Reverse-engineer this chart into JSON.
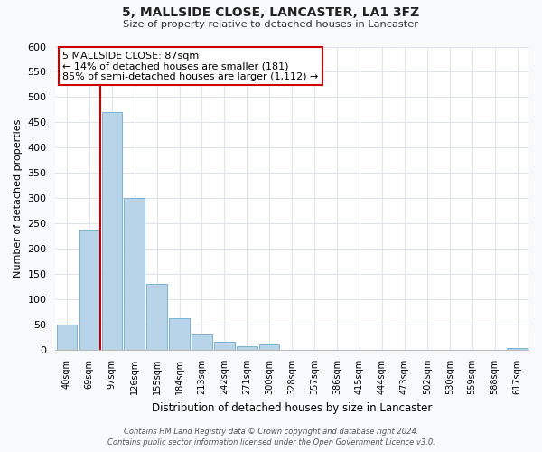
{
  "title": "5, MALLSIDE CLOSE, LANCASTER, LA1 3FZ",
  "subtitle": "Size of property relative to detached houses in Lancaster",
  "xlabel": "Distribution of detached houses by size in Lancaster",
  "ylabel": "Number of detached properties",
  "bar_labels": [
    "40sqm",
    "69sqm",
    "97sqm",
    "126sqm",
    "155sqm",
    "184sqm",
    "213sqm",
    "242sqm",
    "271sqm",
    "300sqm",
    "328sqm",
    "357sqm",
    "386sqm",
    "415sqm",
    "444sqm",
    "473sqm",
    "502sqm",
    "530sqm",
    "559sqm",
    "588sqm",
    "617sqm"
  ],
  "bar_values": [
    50,
    238,
    470,
    300,
    130,
    62,
    30,
    16,
    7,
    10,
    0,
    0,
    0,
    0,
    0,
    0,
    0,
    0,
    0,
    0,
    4
  ],
  "bar_color": "#b8d4e8",
  "bar_edge_color": "#6aaad4",
  "vline_color": "#cc0000",
  "vline_x": 1.5,
  "annotation_line1": "5 MALLSIDE CLOSE: 87sqm",
  "annotation_line2": "← 14% of detached houses are smaller (181)",
  "annotation_line3": "85% of semi-detached houses are larger (1,112) →",
  "annotation_box_facecolor": "#ffffff",
  "annotation_box_edgecolor": "#cc0000",
  "ylim": [
    0,
    600
  ],
  "yticks": [
    0,
    50,
    100,
    150,
    200,
    250,
    300,
    350,
    400,
    450,
    500,
    550,
    600
  ],
  "footer_line1": "Contains HM Land Registry data © Crown copyright and database right 2024.",
  "footer_line2": "Contains public sector information licensed under the Open Government Licence v3.0.",
  "bg_color": "#f8f9fb",
  "plot_bg_color": "#ffffff",
  "grid_color": "#dde4ec"
}
